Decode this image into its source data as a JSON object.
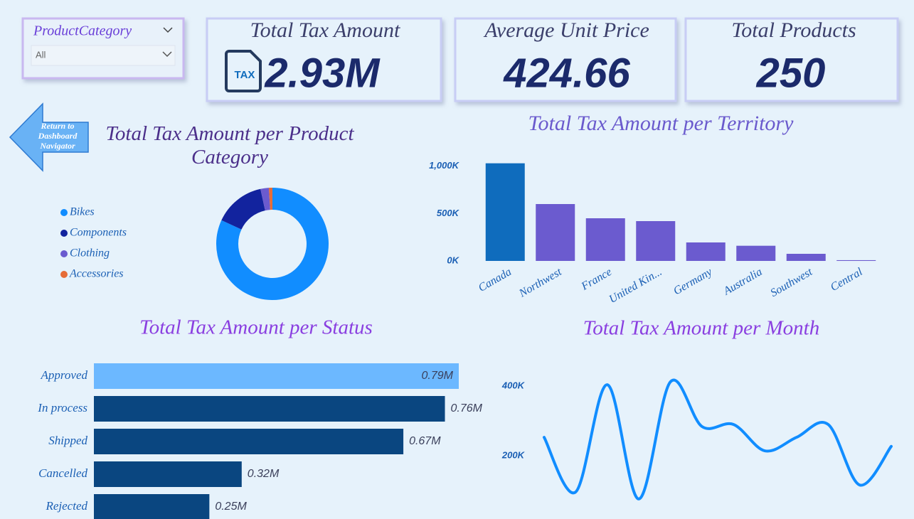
{
  "filter": {
    "label": "ProductCategory",
    "selection": "All"
  },
  "cards": [
    {
      "title": "Total Tax Amount",
      "value": "2.93M",
      "icon": "TAX"
    },
    {
      "title": "Average Unit Price",
      "value": "424.66"
    },
    {
      "title": "Total Products",
      "value": "250"
    }
  ],
  "nav_button": {
    "lines": [
      "Return to",
      "Dashboard",
      "Navigator"
    ]
  },
  "chart_data": [
    {
      "type": "donut",
      "title": "Total Tax Amount per Product Category",
      "categories": [
        "Bikes",
        "Components",
        "Clothing",
        "Accessories"
      ],
      "values": [
        2400000,
        430000,
        70000,
        30000
      ],
      "colors": [
        "#118dff",
        "#12239e",
        "#6b5bcf",
        "#e66c37"
      ]
    },
    {
      "type": "bar",
      "title": "Total Tax Amount per Territory",
      "categories": [
        "Canada",
        "Northwest",
        "France",
        "United Kin...",
        "Germany",
        "Australia",
        "Southwest",
        "Central"
      ],
      "values": [
        1030000,
        600000,
        450000,
        420000,
        195000,
        160000,
        75000,
        8000
      ],
      "colors": [
        "#0f6cbd",
        "#6b5bcf",
        "#6b5bcf",
        "#6b5bcf",
        "#6b5bcf",
        "#6b5bcf",
        "#6b5bcf",
        "#6b5bcf"
      ],
      "ylim": [
        0,
        1050000
      ],
      "yticks": [
        {
          "value": 0,
          "label": "0K"
        },
        {
          "value": 500000,
          "label": "500K"
        },
        {
          "value": 1000000,
          "label": "1,000K"
        }
      ]
    },
    {
      "type": "hbar",
      "title": "Total Tax Amount per Status",
      "categories": [
        "Approved",
        "In process",
        "Shipped",
        "Cancelled",
        "Rejected"
      ],
      "values": [
        790000,
        760000,
        670000,
        320000,
        250000
      ],
      "value_labels": [
        "0.79M",
        "0.76M",
        "0.67M",
        "0.32M",
        "0.25M"
      ],
      "colors": [
        "#6cb8ff",
        "#0a4680",
        "#0a4680",
        "#0a4680",
        "#0a4680"
      ],
      "xlim": [
        0,
        790000
      ]
    },
    {
      "type": "line",
      "title": "Total Tax Amount per Month",
      "categories": [
        null,
        null,
        null,
        null,
        null,
        null,
        null,
        null,
        null,
        null,
        null,
        null
      ],
      "values": [
        253000,
        96000,
        404000,
        76000,
        412000,
        284000,
        290000,
        214000,
        253000,
        290000,
        116000,
        227000
      ],
      "color": "#118dff",
      "ylim": [
        0,
        490000
      ],
      "yticks": [
        {
          "value": 200000,
          "label": "200K"
        },
        {
          "value": 400000,
          "label": "400K"
        }
      ]
    }
  ]
}
